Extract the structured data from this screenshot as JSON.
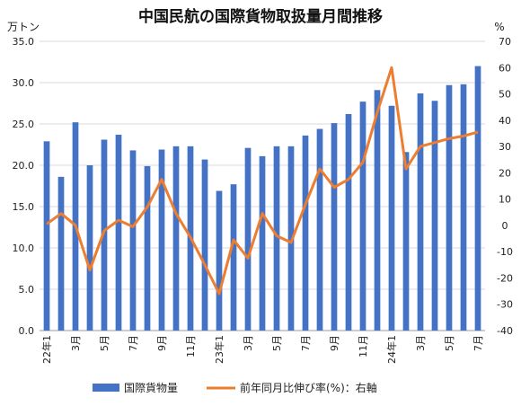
{
  "chart_data": {
    "type": "bar",
    "title": "中国民航の国際貨物取扱量月間推移",
    "y_unit_left": "万トン",
    "y_unit_right": "%",
    "x_labels": [
      "22年1",
      "",
      "3月",
      "",
      "5月",
      "",
      "7月",
      "",
      "9月",
      "",
      "11月",
      "",
      "23年1",
      "",
      "3月",
      "",
      "5月",
      "",
      "7月",
      "",
      "9月",
      "",
      "11月",
      "",
      "24年1",
      "",
      "3月",
      "",
      "5月",
      "",
      "7月"
    ],
    "ylim_left": [
      0,
      35
    ],
    "ylim_right": [
      -40,
      70
    ],
    "yticks_left": [
      "0.0",
      "5.0",
      "10.0",
      "15.0",
      "20.0",
      "25.0",
      "30.0",
      "35.0"
    ],
    "yticks_right": [
      "-40",
      "-30",
      "-20",
      "-10",
      "0",
      "10",
      "20",
      "30",
      "40",
      "50",
      "60",
      "70"
    ],
    "grid": true,
    "legend_position": "bottom",
    "colors": {
      "bar": "#4472C4",
      "line": "#ED7D31"
    },
    "series": [
      {
        "name": "国際貨物量",
        "type": "bar",
        "axis": "left",
        "values": [
          22.9,
          18.6,
          25.2,
          20.0,
          23.1,
          23.7,
          21.8,
          19.9,
          21.9,
          22.3,
          22.3,
          20.7,
          16.9,
          17.7,
          22.1,
          21.1,
          22.3,
          22.3,
          23.6,
          24.4,
          25.1,
          26.2,
          27.7,
          29.1,
          27.2,
          21.6,
          28.7,
          27.8,
          29.7,
          29.8,
          32.0
        ]
      },
      {
        "name": "前年同月比伸び率(%)：右軸",
        "type": "line",
        "axis": "right",
        "values": [
          0.5,
          4.5,
          0.0,
          -17.0,
          -2.0,
          2.0,
          -0.5,
          7.0,
          17.5,
          4.5,
          -4.5,
          -15.0,
          -26.0,
          -5.5,
          -12.5,
          4.5,
          -4.0,
          -6.5,
          8.0,
          21.5,
          14.5,
          17.5,
          24.0,
          43.0,
          60.0,
          21.5,
          30.0,
          31.5,
          33.0,
          34.0,
          35.5
        ]
      }
    ]
  }
}
